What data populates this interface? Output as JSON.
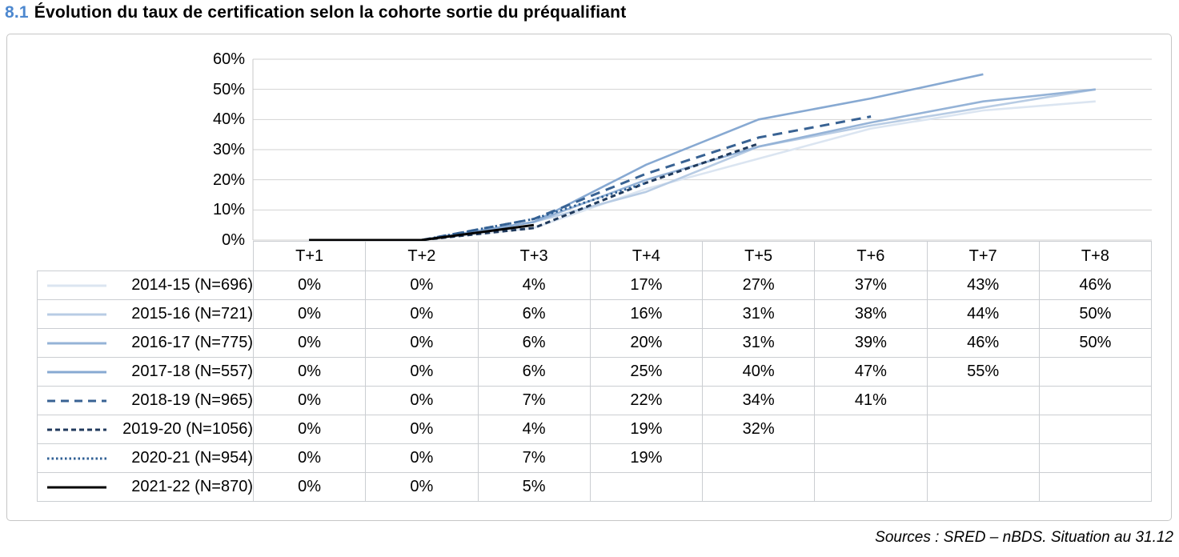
{
  "header": {
    "number": "8.1",
    "title": "Évolution du taux de certification selon la cohorte sortie du préqualifiant"
  },
  "footer": {
    "source": "Sources : SRED – nBDS. Situation au 31.12"
  },
  "colors": {
    "title_number": "#4d88cf",
    "gridline": "#d2d2d2",
    "axis_line": "#c8c8c8"
  },
  "chart_data": {
    "type": "line",
    "title": "Évolution du taux de certification selon la cohorte sortie du préqualifiant",
    "x_categories": [
      "T+1",
      "T+2",
      "T+3",
      "T+4",
      "T+5",
      "T+6",
      "T+7",
      "T+8"
    ],
    "y_ticks": [
      "60%",
      "50%",
      "40%",
      "30%",
      "20%",
      "10%",
      "0%"
    ],
    "ylim": [
      0,
      60
    ],
    "unit": "%",
    "grid": "horizontal",
    "legend_position": "table-left",
    "series": [
      {
        "name": "2014-15 (N=696)",
        "values": [
          0,
          0,
          4,
          17,
          27,
          37,
          43,
          46
        ],
        "color": "#dbe5f1",
        "style": "solid"
      },
      {
        "name": "2015-16 (N=721)",
        "values": [
          0,
          0,
          6,
          16,
          31,
          38,
          44,
          50
        ],
        "color": "#b8cce4",
        "style": "solid"
      },
      {
        "name": "2016-17 (N=775)",
        "values": [
          0,
          0,
          6,
          20,
          31,
          39,
          46,
          50
        ],
        "color": "#95b3d7",
        "style": "solid"
      },
      {
        "name": "2017-18 (N=557)",
        "values": [
          0,
          0,
          6,
          25,
          40,
          47,
          55,
          null
        ],
        "color": "#87a9d2",
        "style": "solid"
      },
      {
        "name": "2018-19 (N=965)",
        "values": [
          0,
          0,
          7,
          22,
          34,
          41,
          null,
          null
        ],
        "color": "#386293",
        "style": "dash"
      },
      {
        "name": "2019-20 (N=1056)",
        "values": [
          0,
          0,
          4,
          19,
          32,
          null,
          null,
          null
        ],
        "color": "#203a5c",
        "style": "short-dash"
      },
      {
        "name": "2020-21 (N=954)",
        "values": [
          0,
          0,
          7,
          19,
          null,
          null,
          null,
          null
        ],
        "color": "#2f5f94",
        "style": "dot"
      },
      {
        "name": "2021-22 (N=870)",
        "values": [
          0,
          0,
          5,
          null,
          null,
          null,
          null,
          null
        ],
        "color": "#000000",
        "style": "solid"
      }
    ]
  }
}
